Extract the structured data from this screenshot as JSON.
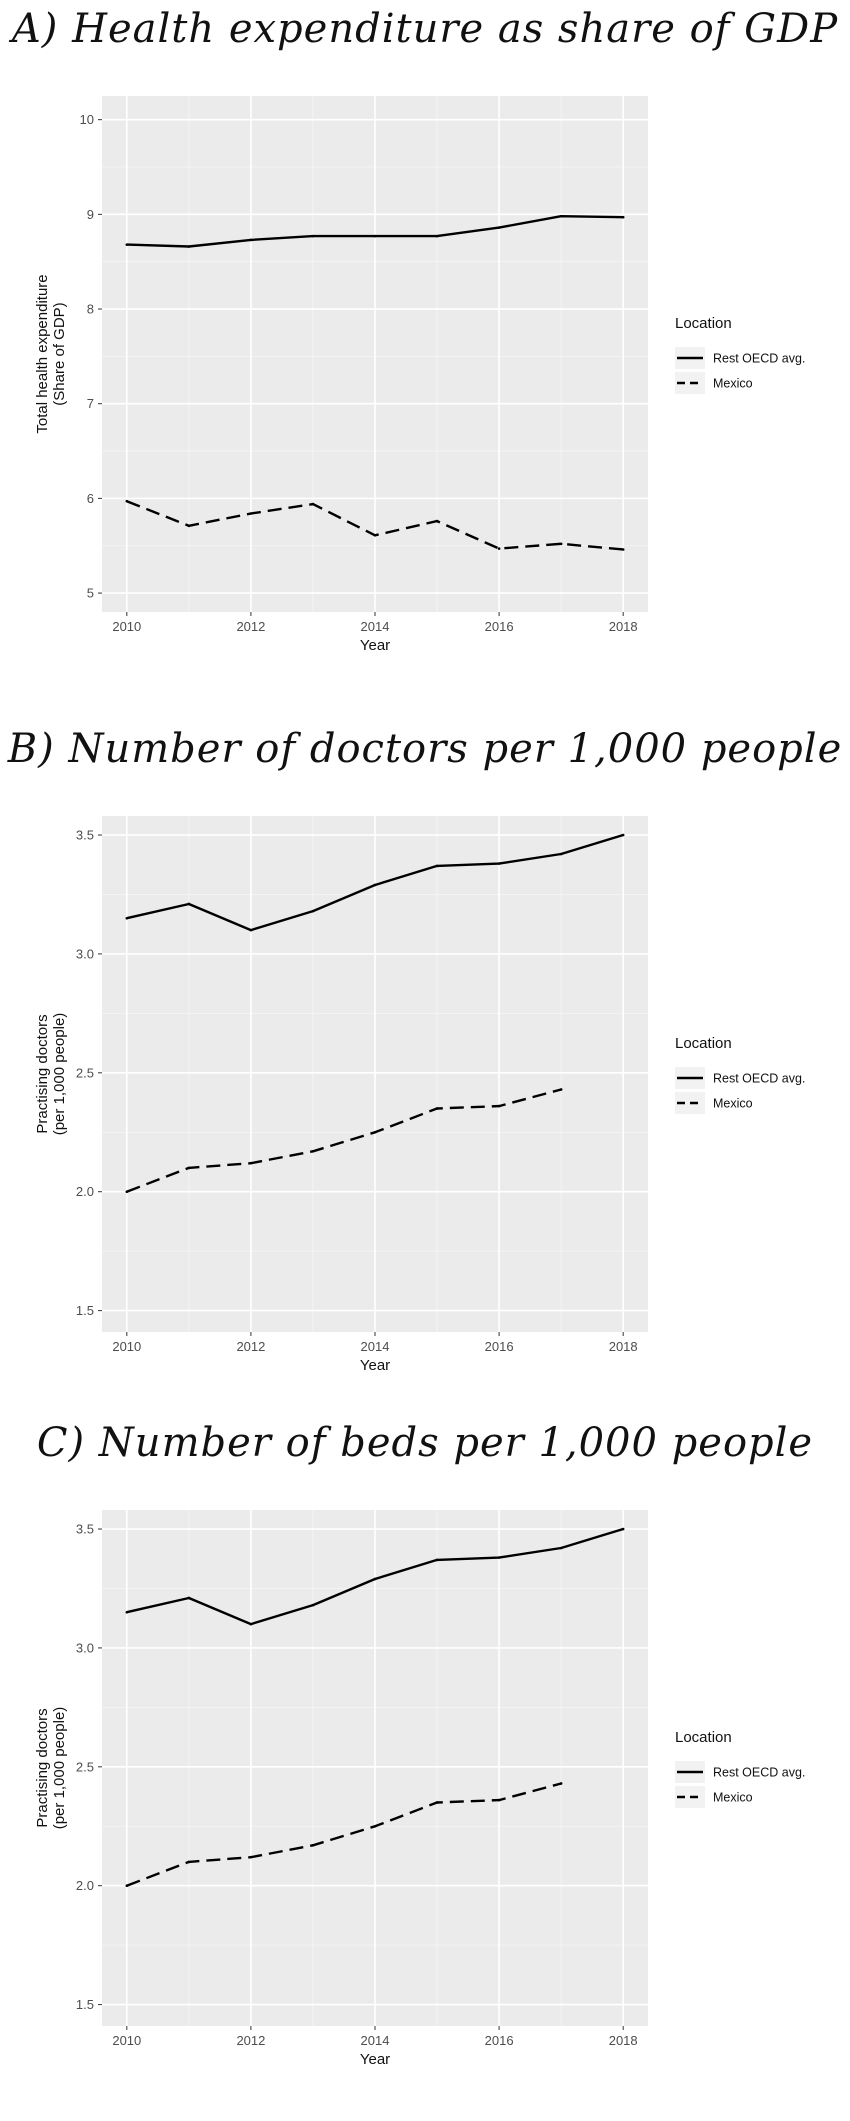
{
  "chart_data": [
    {
      "type": "line",
      "title": "A) Health expenditure as share of GDP",
      "xlabel": "Year",
      "ylabel": [
        "Total health expenditure",
        "(Share of GDP)"
      ],
      "xlim": [
        2009.6,
        2018.4
      ],
      "ylim": [
        4.8,
        10.25
      ],
      "x_ticks": [
        "2010",
        "2012",
        "2014",
        "2016",
        "2018"
      ],
      "y_ticks": [
        "5",
        "6",
        "7",
        "8",
        "9",
        "10"
      ],
      "legend": {
        "title": "Location",
        "position": "right"
      },
      "series": [
        {
          "name": "Rest OECD avg.",
          "style": "solid",
          "x": [
            2010,
            2011,
            2012,
            2013,
            2014,
            2015,
            2016,
            2017,
            2018
          ],
          "values": [
            8.68,
            8.66,
            8.73,
            8.77,
            8.77,
            8.77,
            8.86,
            8.98,
            8.97
          ]
        },
        {
          "name": "Mexico",
          "style": "dashed",
          "x": [
            2010,
            2011,
            2012,
            2013,
            2014,
            2015,
            2016,
            2017,
            2018
          ],
          "values": [
            5.97,
            5.71,
            5.84,
            5.94,
            5.61,
            5.76,
            5.47,
            5.52,
            5.46
          ]
        }
      ]
    },
    {
      "type": "line",
      "title": "B) Number of doctors per 1,000 people",
      "xlabel": "Year",
      "ylabel": [
        "Practising doctors",
        "(per 1,000 people)"
      ],
      "xlim": [
        2009.6,
        2018.4
      ],
      "ylim": [
        1.41,
        3.58
      ],
      "x_ticks": [
        "2010",
        "2012",
        "2014",
        "2016",
        "2018"
      ],
      "y_ticks": [
        "1.5",
        "2.0",
        "2.5",
        "3.0",
        "3.5"
      ],
      "legend": {
        "title": "Location",
        "position": "right"
      },
      "series": [
        {
          "name": "Rest OECD avg.",
          "style": "solid",
          "x": [
            2010,
            2011,
            2012,
            2013,
            2014,
            2015,
            2016,
            2017,
            2018
          ],
          "values": [
            3.15,
            3.21,
            3.1,
            3.18,
            3.29,
            3.37,
            3.38,
            3.42,
            3.5
          ]
        },
        {
          "name": "Mexico",
          "style": "dashed",
          "x": [
            2010,
            2011,
            2012,
            2013,
            2014,
            2015,
            2016,
            2017
          ],
          "values": [
            2.0,
            2.1,
            2.12,
            2.17,
            2.25,
            2.35,
            2.36,
            2.43
          ]
        }
      ]
    },
    {
      "type": "line",
      "title": "C) Number of beds per 1,000 people",
      "xlabel": "Year",
      "ylabel": [
        "Practising doctors",
        "(per 1,000 people)"
      ],
      "xlim": [
        2009.6,
        2018.4
      ],
      "ylim": [
        1.41,
        3.58
      ],
      "x_ticks": [
        "2010",
        "2012",
        "2014",
        "2016",
        "2018"
      ],
      "y_ticks": [
        "1.5",
        "2.0",
        "2.5",
        "3.0",
        "3.5"
      ],
      "legend": {
        "title": "Location",
        "position": "right"
      },
      "series": [
        {
          "name": "Rest OECD avg.",
          "style": "solid",
          "x": [
            2010,
            2011,
            2012,
            2013,
            2014,
            2015,
            2016,
            2017,
            2018
          ],
          "values": [
            3.15,
            3.21,
            3.1,
            3.18,
            3.29,
            3.37,
            3.38,
            3.42,
            3.5
          ]
        },
        {
          "name": "Mexico",
          "style": "dashed",
          "x": [
            2010,
            2011,
            2012,
            2013,
            2014,
            2015,
            2016,
            2017
          ],
          "values": [
            2.0,
            2.1,
            2.12,
            2.17,
            2.25,
            2.35,
            2.36,
            2.43
          ]
        }
      ]
    }
  ],
  "colors": {
    "panel_bg": "#ebebeb",
    "grid_major": "#ffffff",
    "line": "#000000"
  }
}
